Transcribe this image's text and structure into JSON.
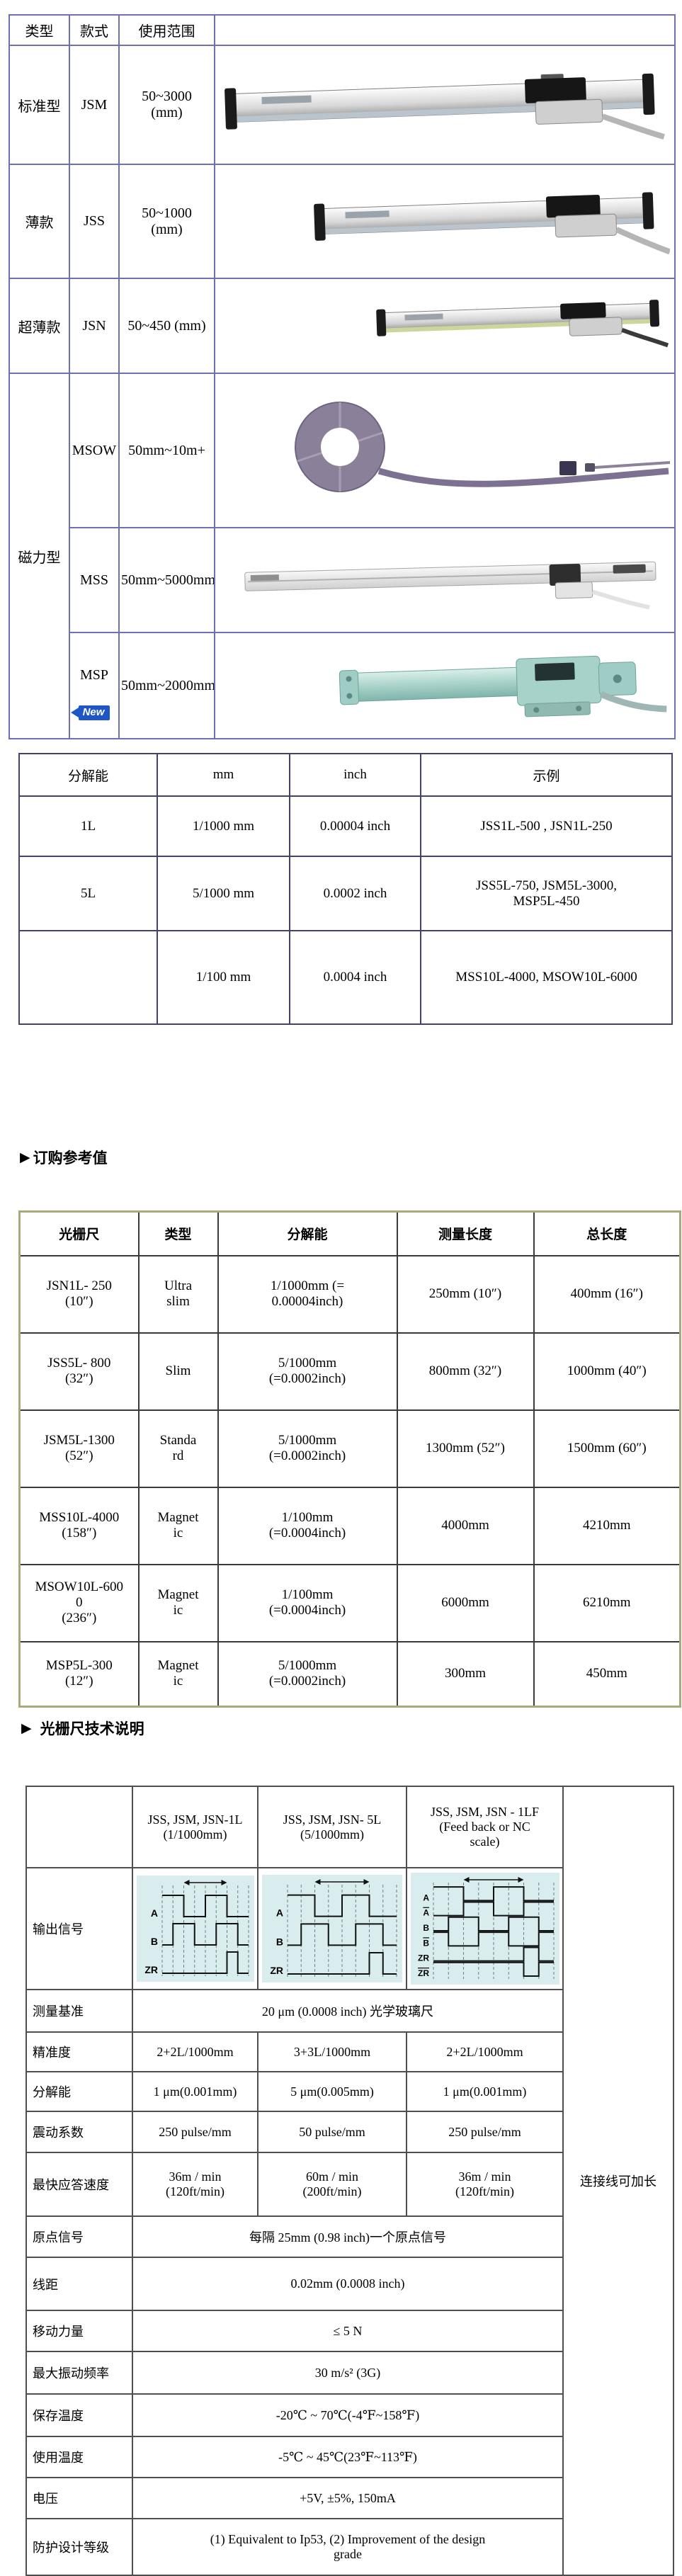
{
  "colors": {
    "table1_border": "#6f6fb4",
    "table2_border": "#42426b",
    "table3_outer_border": "#a9a97a",
    "table3_inner_border": "#3a3a3a",
    "table4_border": "#4f4f4f",
    "waveform_bg": "#d9edee",
    "badge_blue": "#1e56c8"
  },
  "products": {
    "headers": [
      "类型",
      "款式",
      "使用范围"
    ],
    "rows": [
      {
        "type": "标准型",
        "model": "JSM",
        "range": "50~3000\n(mm)",
        "photo": "jsm-standard-scale-photo"
      },
      {
        "type": "薄款",
        "model": "JSS",
        "range": "50~1000\n(mm)",
        "photo": "jss-slim-scale-photo"
      },
      {
        "type": "超薄款",
        "model": "JSN",
        "range": "50~450 (mm)",
        "photo": "jsn-ultra-slim-scale-photo"
      },
      {
        "type": "磁力型",
        "model": "MSOW",
        "range": "50mm~10m+",
        "photo": "msow-magnetic-tape-photo"
      },
      {
        "model": "MSS",
        "range": "50mm~5000mm",
        "photo": "mss-magnetic-scale-photo"
      },
      {
        "model": "MSP",
        "badge": "New",
        "range": "50mm~2000mm",
        "photo": "msp-magnetic-scale-photo"
      }
    ]
  },
  "resolution_table": {
    "headers": [
      "分解能",
      "mm",
      "inch",
      "示例"
    ],
    "rows": [
      [
        "1L",
        "1/1000 mm",
        "0.00004 inch",
        "JSS1L-500 , JSN1L-250"
      ],
      [
        "5L",
        "5/1000 mm",
        "0.0002 inch",
        "JSS5L-750, JSM5L-3000,\nMSP5L-450"
      ],
      [
        "",
        "1/100 mm",
        "0.0004 inch",
        "MSS10L-4000, MSOW10L-6000"
      ]
    ]
  },
  "order_section": {
    "marker": "▶",
    "title": "订购参考值"
  },
  "order_table": {
    "headers": [
      "光栅尺",
      "类型",
      "分解能",
      "测量长度",
      "总长度"
    ],
    "rows": [
      [
        "JSN1L- 250\n(10″)",
        "Ultra\nslim",
        "1/1000mm (=\n0.00004inch)",
        "250mm (10″)",
        "400mm (16″)"
      ],
      [
        "JSS5L- 800\n(32″)",
        "Slim",
        "5/1000mm\n(=0.0002inch)",
        "800mm (32″)",
        "1000mm (40″)"
      ],
      [
        "JSM5L-1300\n(52″)",
        "Standa\nrd",
        "5/1000mm\n(=0.0002inch)",
        "1300mm (52″)",
        "1500mm (60″)"
      ],
      [
        "MSS10L-4000\n(158″)",
        "Magnet\nic",
        "1/100mm\n(=0.0004inch)",
        "4000mm",
        "4210mm"
      ],
      [
        "MSOW10L-600\n0\n(236″)",
        "Magnet\nic",
        "1/100mm\n(=0.0004inch)",
        "6000mm",
        "6210mm"
      ],
      [
        "MSP5L-300\n(12″)",
        "Magnet\nic",
        "5/1000mm\n(=0.0002inch)",
        "300mm",
        "450mm"
      ]
    ]
  },
  "tech_section": {
    "marker": "▶",
    "title": "光栅尺技术说明"
  },
  "tech_table": {
    "col_headers": [
      "JSS, JSM, JSN-1L\n(1/1000mm)",
      "JSS, JSM, JSN-  5L\n(5/1000mm)",
      "JSS, JSM, JSN -  1LF\n(Feed back or  NC\nscale)"
    ],
    "side_note": "连接线可加长",
    "waveforms": [
      {
        "name": "quadrature-output-1L",
        "signals": [
          "A",
          "B",
          "ZR"
        ]
      },
      {
        "name": "quadrature-output-5L",
        "signals": [
          "A",
          "B",
          "ZR"
        ]
      },
      {
        "name": "differential-output-1LF",
        "signals": [
          "A",
          "!A",
          "B",
          "!B",
          "ZR",
          "!ZR"
        ]
      }
    ],
    "rows": [
      {
        "label": "输出信号"
      },
      {
        "label": "测量基准",
        "span": "20 μm (0.0008 inch) 光学玻璃尺"
      },
      {
        "label": "精准度",
        "cells": [
          "2+2L/1000mm",
          "3+3L/1000mm",
          "2+2L/1000mm"
        ]
      },
      {
        "label": "分解能",
        "cells": [
          "1 μm(0.001mm)",
          "5 μm(0.005mm)",
          "1 μm(0.001mm)"
        ]
      },
      {
        "label": "震动系数",
        "cells": [
          "250 pulse/mm",
          "50 pulse/mm",
          "250 pulse/mm"
        ]
      },
      {
        "label": "最快应答速度",
        "cells": [
          "36m / min\n(120ft/min)",
          "60m / min\n(200ft/min)",
          "36m / min\n(120ft/min)"
        ]
      },
      {
        "label": "原点信号",
        "span": "每隔 25mm (0.98 inch)一个原点信号"
      },
      {
        "label": "线距",
        "span": "0.02mm (0.0008 inch)"
      },
      {
        "label": "移动力量",
        "span": "≤ 5 N"
      },
      {
        "label": "最大振动频率",
        "span": "30 m/s² (3G)"
      },
      {
        "label": "保存温度",
        "span": "-20℃ ~ 70℃(-4℉~158℉)"
      },
      {
        "label": "使用温度",
        "span": "-5℃ ~ 45℃(23℉~113℉)"
      },
      {
        "label": "电压",
        "span": "+5V, ±5%, 150mA"
      },
      {
        "label": "防护设计等级",
        "span": "(1) Equivalent to Ip53, (2) Improvement of the design\ngrade"
      }
    ]
  }
}
